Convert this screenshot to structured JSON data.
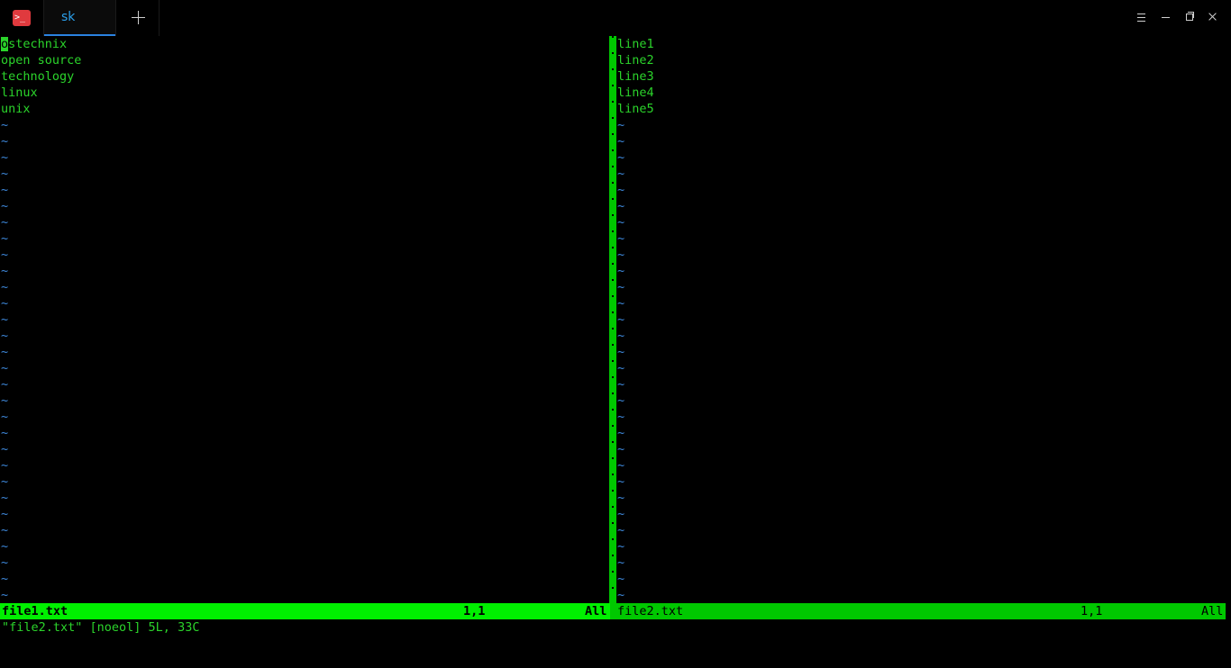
{
  "window": {
    "tab_title": "sk",
    "app_icon_glyph": ">_"
  },
  "left_pane": {
    "lines": [
      "ostechnix",
      "open source",
      "technology",
      "linux",
      "unix"
    ],
    "cursor_char": "o",
    "status": {
      "filename": "file1.txt",
      "position": "1,1",
      "scroll": "All"
    }
  },
  "right_pane": {
    "lines": [
      "line1",
      "line2",
      "line3",
      "line4",
      "line5"
    ],
    "status": {
      "filename": "file2.txt",
      "position": "1,1",
      "scroll": "All"
    }
  },
  "empty_line_marker": "~",
  "command_line": "\"file2.txt\" [noeol] 5L, 33C",
  "colors": {
    "text_green": "#2bd42b",
    "tilde_blue": "#3d86d8",
    "status_active": "#00f000",
    "status_inactive": "#00c800",
    "tab_accent": "#2b82e0"
  }
}
